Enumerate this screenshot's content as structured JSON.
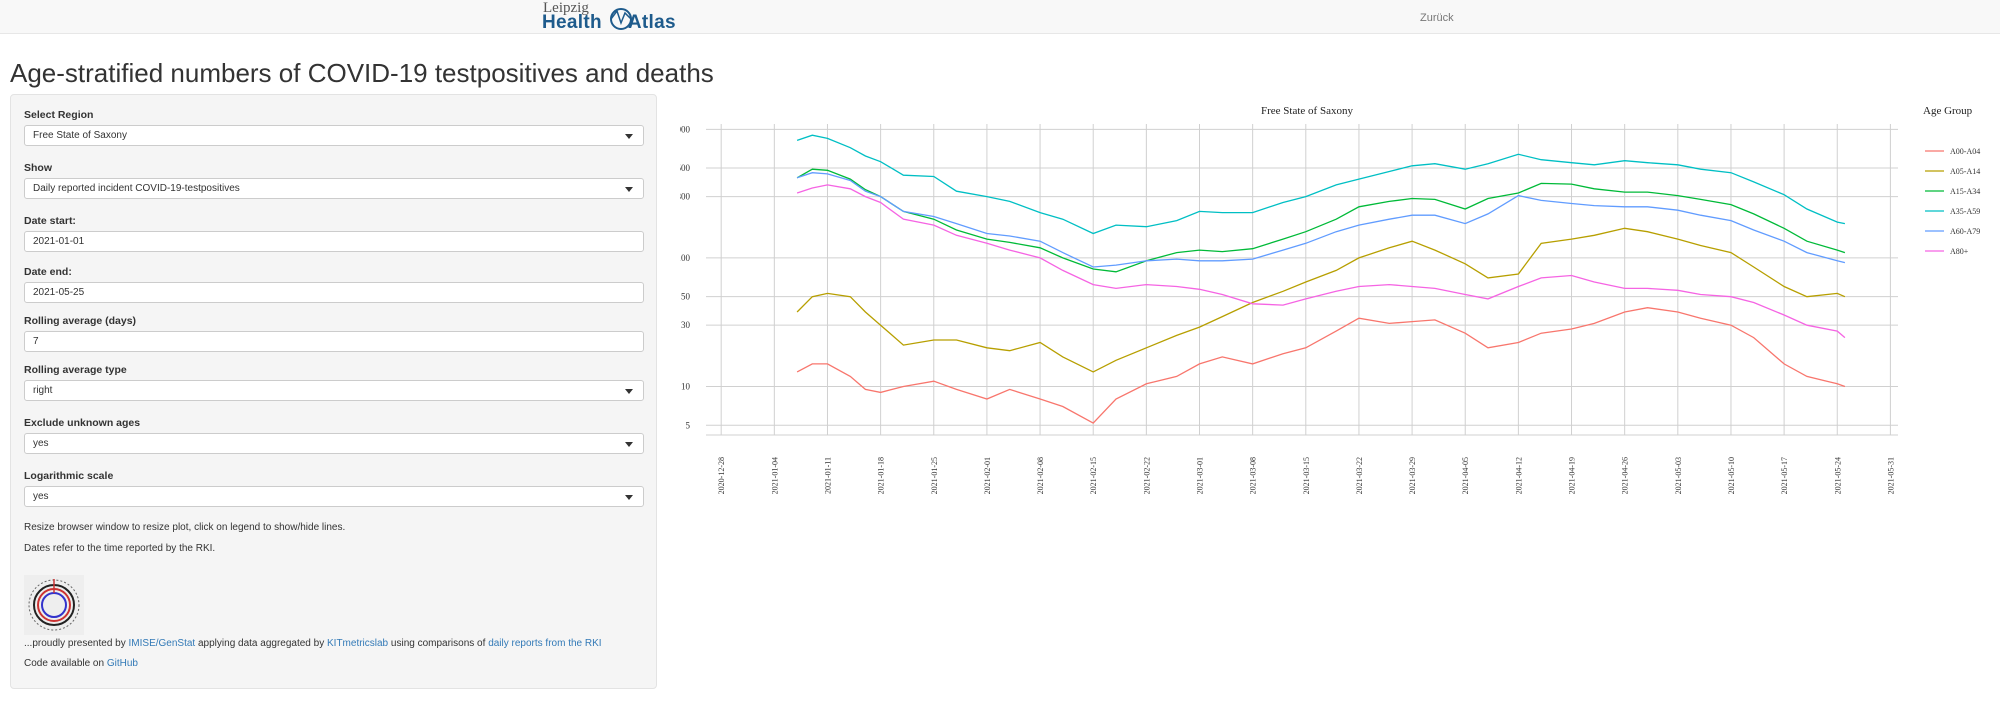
{
  "navbar": {
    "logo_top": "Leipzig",
    "logo_bottom_left": "Health",
    "logo_bottom_right": "Atlas",
    "back_link": "Zurück"
  },
  "page_title": "Age-stratified numbers of COVID-19 testpositives and deaths",
  "sidebar": {
    "region_label": "Select Region",
    "region_value": "Free State of Saxony",
    "show_label": "Show",
    "show_value": "Daily reported incident COVID-19-testpositives",
    "date_start_label": "Date start:",
    "date_start_value": "2021-01-01",
    "date_end_label": "Date end:",
    "date_end_value": "2021-05-25",
    "rolling_days_label": "Rolling average (days)",
    "rolling_days_value": "7",
    "rolling_type_label": "Rolling average type",
    "rolling_type_value": "right",
    "exclude_label": "Exclude unknown ages",
    "exclude_value": "yes",
    "log_label": "Logarithmic scale",
    "log_value": "yes",
    "note_resize": "Resize browser window to resize plot, click on legend to show/hide lines.",
    "note_dates": "Dates refer to the time reported by the RKI.",
    "credits_prefix": "...proudly presented by",
    "credits_link1": "IMISE/GenStat",
    "credits_mid1": "applying data aggregated by",
    "credits_link2": "KITmetricslab",
    "credits_mid2": "using comparisons of",
    "credits_link3": "daily reports from the RKI",
    "code_prefix": "Code available on",
    "code_link": "GitHub"
  },
  "chart_data": {
    "type": "line",
    "title": "Free State of Saxony",
    "legend_title": "Age Group",
    "legend_position": "right",
    "y_scale": "log",
    "ylim": [
      4.2,
      1100
    ],
    "y_ticks": [
      5,
      10,
      30,
      50,
      100,
      300,
      500,
      1000
    ],
    "y_tick_labels": [
      "5",
      "10",
      "30",
      "50",
      "100",
      "300",
      "500",
      "1,000"
    ],
    "xlim": [
      "2020-12-26",
      "2021-06-01"
    ],
    "x_ticks": [
      "2020-12-28",
      "2021-01-04",
      "2021-01-11",
      "2021-01-18",
      "2021-01-25",
      "2021-02-01",
      "2021-02-08",
      "2021-02-15",
      "2021-02-22",
      "2021-03-01",
      "2021-03-08",
      "2021-03-15",
      "2021-03-22",
      "2021-03-29",
      "2021-04-05",
      "2021-04-12",
      "2021-04-19",
      "2021-04-26",
      "2021-05-03",
      "2021-05-10",
      "2021-05-17",
      "2021-05-24",
      "2021-05-31"
    ],
    "grid": true,
    "series": [
      {
        "name": "A00-A04",
        "color": "#f8766d",
        "x": [
          "2021-01-07",
          "2021-01-09",
          "2021-01-11",
          "2021-01-14",
          "2021-01-16",
          "2021-01-18",
          "2021-01-21",
          "2021-01-25",
          "2021-01-28",
          "2021-02-01",
          "2021-02-04",
          "2021-02-08",
          "2021-02-11",
          "2021-02-15",
          "2021-02-18",
          "2021-02-22",
          "2021-02-26",
          "2021-03-01",
          "2021-03-04",
          "2021-03-08",
          "2021-03-12",
          "2021-03-15",
          "2021-03-19",
          "2021-03-22",
          "2021-03-26",
          "2021-03-29",
          "2021-04-01",
          "2021-04-05",
          "2021-04-08",
          "2021-04-12",
          "2021-04-15",
          "2021-04-19",
          "2021-04-22",
          "2021-04-26",
          "2021-04-29",
          "2021-05-03",
          "2021-05-06",
          "2021-05-10",
          "2021-05-13",
          "2021-05-17",
          "2021-05-20",
          "2021-05-24",
          "2021-05-25"
        ],
        "values": [
          13,
          15,
          15,
          12,
          9.5,
          9,
          10,
          11,
          9.5,
          8,
          9.5,
          8,
          7,
          5.2,
          8,
          10.5,
          12,
          15,
          17,
          15,
          18,
          20,
          27,
          34,
          31,
          32,
          33,
          26,
          20,
          22,
          26,
          28,
          31,
          38,
          41,
          38,
          34,
          30,
          24,
          15,
          12,
          10.5,
          10
        ]
      },
      {
        "name": "A05-A14",
        "color": "#b79f00",
        "x": [
          "2021-01-07",
          "2021-01-09",
          "2021-01-11",
          "2021-01-14",
          "2021-01-16",
          "2021-01-18",
          "2021-01-21",
          "2021-01-25",
          "2021-01-28",
          "2021-02-01",
          "2021-02-04",
          "2021-02-08",
          "2021-02-11",
          "2021-02-15",
          "2021-02-18",
          "2021-02-22",
          "2021-02-26",
          "2021-03-01",
          "2021-03-04",
          "2021-03-08",
          "2021-03-12",
          "2021-03-15",
          "2021-03-19",
          "2021-03-22",
          "2021-03-26",
          "2021-03-29",
          "2021-04-01",
          "2021-04-05",
          "2021-04-08",
          "2021-04-12",
          "2021-04-15",
          "2021-04-19",
          "2021-04-22",
          "2021-04-26",
          "2021-04-29",
          "2021-05-03",
          "2021-05-06",
          "2021-05-10",
          "2021-05-13",
          "2021-05-17",
          "2021-05-20",
          "2021-05-24",
          "2021-05-25"
        ],
        "values": [
          38,
          50,
          53,
          50,
          38,
          30,
          21,
          23,
          23,
          20,
          19,
          22,
          17,
          13,
          16,
          20,
          25,
          29,
          35,
          45,
          55,
          65,
          80,
          100,
          120,
          135,
          115,
          90,
          70,
          75,
          130,
          140,
          150,
          170,
          160,
          140,
          125,
          110,
          85,
          60,
          50,
          53,
          50
        ]
      },
      {
        "name": "A15-A34",
        "color": "#00ba38",
        "x": [
          "2021-01-07",
          "2021-01-09",
          "2021-01-11",
          "2021-01-14",
          "2021-01-16",
          "2021-01-18",
          "2021-01-21",
          "2021-01-25",
          "2021-01-28",
          "2021-02-01",
          "2021-02-04",
          "2021-02-08",
          "2021-02-11",
          "2021-02-15",
          "2021-02-18",
          "2021-02-22",
          "2021-02-26",
          "2021-03-01",
          "2021-03-04",
          "2021-03-08",
          "2021-03-12",
          "2021-03-15",
          "2021-03-19",
          "2021-03-22",
          "2021-03-26",
          "2021-03-29",
          "2021-04-01",
          "2021-04-05",
          "2021-04-08",
          "2021-04-12",
          "2021-04-15",
          "2021-04-19",
          "2021-04-22",
          "2021-04-26",
          "2021-04-29",
          "2021-05-03",
          "2021-05-06",
          "2021-05-10",
          "2021-05-13",
          "2021-05-17",
          "2021-05-20",
          "2021-05-24",
          "2021-05-25"
        ],
        "values": [
          420,
          490,
          480,
          410,
          340,
          300,
          230,
          200,
          165,
          140,
          132,
          120,
          100,
          82,
          78,
          95,
          110,
          115,
          112,
          118,
          140,
          160,
          200,
          250,
          275,
          290,
          285,
          240,
          290,
          320,
          380,
          375,
          345,
          325,
          325,
          305,
          285,
          260,
          220,
          170,
          135,
          115,
          110
        ]
      },
      {
        "name": "A35-A59",
        "color": "#00bfc4",
        "x": [
          "2021-01-07",
          "2021-01-09",
          "2021-01-11",
          "2021-01-14",
          "2021-01-16",
          "2021-01-18",
          "2021-01-21",
          "2021-01-25",
          "2021-01-28",
          "2021-02-01",
          "2021-02-04",
          "2021-02-08",
          "2021-02-11",
          "2021-02-15",
          "2021-02-18",
          "2021-02-22",
          "2021-02-26",
          "2021-03-01",
          "2021-03-04",
          "2021-03-08",
          "2021-03-12",
          "2021-03-15",
          "2021-03-19",
          "2021-03-22",
          "2021-03-26",
          "2021-03-29",
          "2021-04-01",
          "2021-04-05",
          "2021-04-08",
          "2021-04-12",
          "2021-04-15",
          "2021-04-19",
          "2021-04-22",
          "2021-04-26",
          "2021-04-29",
          "2021-05-03",
          "2021-05-06",
          "2021-05-10",
          "2021-05-13",
          "2021-05-17",
          "2021-05-20",
          "2021-05-24",
          "2021-05-25"
        ],
        "values": [
          820,
          900,
          850,
          720,
          620,
          560,
          440,
          430,
          330,
          300,
          275,
          225,
          200,
          155,
          180,
          175,
          195,
          230,
          225,
          225,
          270,
          300,
          370,
          410,
          470,
          520,
          540,
          490,
          540,
          640,
          580,
          550,
          530,
          570,
          550,
          530,
          490,
          460,
          390,
          310,
          240,
          190,
          185
        ]
      },
      {
        "name": "A60-A79",
        "color": "#619cff",
        "x": [
          "2021-01-07",
          "2021-01-09",
          "2021-01-11",
          "2021-01-14",
          "2021-01-16",
          "2021-01-18",
          "2021-01-21",
          "2021-01-25",
          "2021-01-28",
          "2021-02-01",
          "2021-02-04",
          "2021-02-08",
          "2021-02-11",
          "2021-02-15",
          "2021-02-18",
          "2021-02-22",
          "2021-02-26",
          "2021-03-01",
          "2021-03-04",
          "2021-03-08",
          "2021-03-12",
          "2021-03-15",
          "2021-03-19",
          "2021-03-22",
          "2021-03-26",
          "2021-03-29",
          "2021-04-01",
          "2021-04-05",
          "2021-04-08",
          "2021-04-12",
          "2021-04-15",
          "2021-04-19",
          "2021-04-22",
          "2021-04-26",
          "2021-04-29",
          "2021-05-03",
          "2021-05-06",
          "2021-05-10",
          "2021-05-13",
          "2021-05-17",
          "2021-05-20",
          "2021-05-24",
          "2021-05-25"
        ],
        "values": [
          420,
          460,
          450,
          400,
          330,
          300,
          230,
          210,
          185,
          155,
          148,
          135,
          110,
          85,
          88,
          95,
          98,
          95,
          95,
          98,
          115,
          130,
          160,
          180,
          200,
          215,
          215,
          185,
          220,
          305,
          280,
          265,
          255,
          250,
          250,
          235,
          215,
          195,
          165,
          135,
          110,
          95,
          92
        ]
      },
      {
        "name": "A80+",
        "color": "#f564e3",
        "x": [
          "2021-01-07",
          "2021-01-09",
          "2021-01-11",
          "2021-01-14",
          "2021-01-16",
          "2021-01-18",
          "2021-01-21",
          "2021-01-25",
          "2021-01-28",
          "2021-02-01",
          "2021-02-04",
          "2021-02-08",
          "2021-02-11",
          "2021-02-15",
          "2021-02-18",
          "2021-02-22",
          "2021-02-26",
          "2021-03-01",
          "2021-03-04",
          "2021-03-08",
          "2021-03-12",
          "2021-03-15",
          "2021-03-19",
          "2021-03-22",
          "2021-03-26",
          "2021-03-29",
          "2021-04-01",
          "2021-04-05",
          "2021-04-08",
          "2021-04-12",
          "2021-04-15",
          "2021-04-19",
          "2021-04-22",
          "2021-04-26",
          "2021-04-29",
          "2021-05-03",
          "2021-05-06",
          "2021-05-10",
          "2021-05-13",
          "2021-05-17",
          "2021-05-20",
          "2021-05-24",
          "2021-05-25"
        ],
        "values": [
          320,
          350,
          370,
          345,
          300,
          270,
          200,
          180,
          150,
          130,
          115,
          100,
          80,
          62,
          58,
          62,
          60,
          57,
          52,
          44,
          43,
          48,
          55,
          60,
          62,
          60,
          58,
          52,
          48,
          60,
          70,
          73,
          65,
          58,
          58,
          56,
          52,
          50,
          45,
          36,
          30,
          27,
          24
        ]
      }
    ]
  }
}
